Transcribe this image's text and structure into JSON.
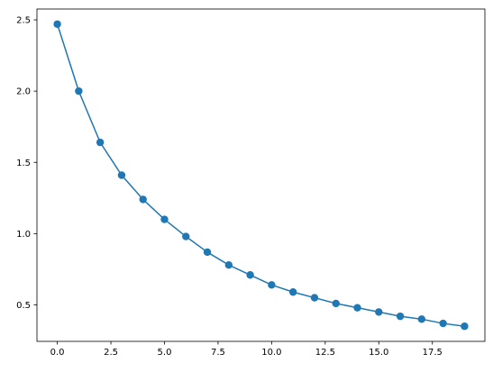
{
  "chart_data": {
    "type": "line",
    "title": "",
    "xlabel": "",
    "ylabel": "",
    "marker": "circle",
    "grid": false,
    "x": [
      0,
      1,
      2,
      3,
      4,
      5,
      6,
      7,
      8,
      9,
      10,
      11,
      12,
      13,
      14,
      15,
      16,
      17,
      18,
      19
    ],
    "series": [
      {
        "color": "#1f77b4",
        "values": [
          2.47,
          2.0,
          1.64,
          1.41,
          1.24,
          1.1,
          0.98,
          0.87,
          0.78,
          0.71,
          0.64,
          0.59,
          0.55,
          0.51,
          0.48,
          0.45,
          0.42,
          0.4,
          0.37,
          0.35
        ]
      }
    ],
    "xlim": [
      -0.95,
      19.95
    ],
    "ylim": [
      0.244,
      2.576
    ],
    "x_ticks": [
      0.0,
      2.5,
      5.0,
      7.5,
      10.0,
      12.5,
      15.0,
      17.5
    ],
    "x_tick_labels": [
      "0.0",
      "2.5",
      "5.0",
      "7.5",
      "10.0",
      "12.5",
      "15.0",
      "17.5"
    ],
    "y_ticks": [
      0.5,
      1.0,
      1.5,
      2.0,
      2.5
    ],
    "y_tick_labels": [
      "0.5",
      "1.0",
      "1.5",
      "2.0",
      "2.5"
    ]
  }
}
